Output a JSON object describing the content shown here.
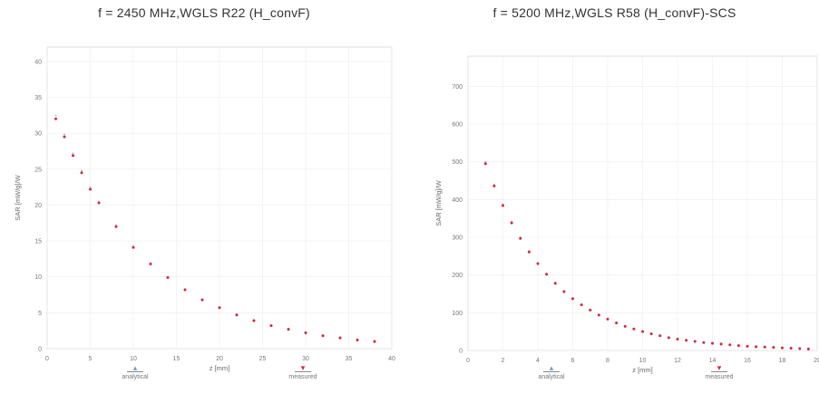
{
  "chart_data": [
    {
      "type": "scatter",
      "title": "f = 2450 MHz,WGLS R22 (H_convF)",
      "xlabel": "z [mm]",
      "ylabel": "SAR [mW/g]/W",
      "xlim": [
        0,
        40
      ],
      "ylim": [
        0,
        42
      ],
      "xticks": [
        "0",
        "5",
        "10",
        "15",
        "20",
        "25",
        "30",
        "35",
        "40"
      ],
      "yticks": [
        "0",
        "5",
        "10",
        "15",
        "20",
        "25",
        "30",
        "35",
        "40"
      ],
      "grid": true,
      "series": [
        {
          "name": "analytical",
          "color": "#7a9fb8",
          "x": [
            1,
            2,
            3,
            4,
            5,
            6,
            8,
            10,
            12,
            14,
            16,
            18,
            20,
            22,
            24,
            26,
            28,
            30,
            32,
            34,
            36,
            38
          ],
          "y": [
            32.5,
            29.8,
            27.2,
            24.8,
            22.5,
            20.5,
            17.2,
            14.3,
            11.9,
            10.0,
            8.3,
            6.9,
            5.8,
            4.8,
            4.0,
            3.3,
            2.8,
            2.3,
            1.9,
            1.6,
            1.3,
            1.1
          ]
        },
        {
          "name": "measured",
          "color": "#cc2a3a",
          "x": [
            1,
            2,
            3,
            4,
            5,
            6,
            8,
            10,
            12,
            14,
            16,
            18,
            20,
            22,
            24,
            26,
            28,
            30,
            32,
            34,
            36,
            38
          ],
          "y": [
            32.0,
            29.5,
            26.9,
            24.5,
            22.2,
            20.3,
            17.0,
            14.1,
            11.8,
            9.9,
            8.2,
            6.8,
            5.7,
            4.7,
            3.9,
            3.2,
            2.7,
            2.2,
            1.8,
            1.5,
            1.2,
            1.0
          ]
        }
      ],
      "legend": [
        "analytical",
        "measured"
      ],
      "legend_position": "bottom"
    },
    {
      "type": "scatter",
      "title": "f = 5200 MHz,WGLS R58 (H_convF)-SCS",
      "xlabel": "z [mm]",
      "ylabel": "SAR [mW/g]/W",
      "xlim": [
        0,
        20
      ],
      "ylim": [
        0,
        780
      ],
      "xticks": [
        "0",
        "2",
        "4",
        "6",
        "8",
        "10",
        "12",
        "14",
        "16",
        "18",
        "20"
      ],
      "yticks": [
        "0",
        "100",
        "200",
        "300",
        "400",
        "500",
        "600",
        "700"
      ],
      "grid": true,
      "series": [
        {
          "name": "analytical",
          "color": "#7a9fb8",
          "x": [
            1.0,
            1.5,
            2.0,
            2.5,
            3.0,
            3.5,
            4.0,
            4.5,
            5.0,
            5.5,
            6.0,
            6.5,
            7.0,
            7.5,
            8.0,
            8.5,
            9.0,
            9.5,
            10.0,
            10.5,
            11.0,
            11.5,
            12.0,
            12.5,
            13.0,
            13.5,
            14.0,
            14.5,
            15.0,
            15.5,
            16.0,
            16.5,
            17.0,
            17.5,
            18.0,
            18.5,
            19.0,
            19.5
          ],
          "y": [
            500,
            440,
            388,
            342,
            300,
            264,
            232,
            204,
            180,
            158,
            139,
            122,
            108,
            95,
            84,
            74,
            65,
            58,
            51,
            45,
            40,
            35,
            31,
            28,
            25,
            22,
            20,
            18,
            16,
            14,
            12,
            11,
            10,
            9,
            8,
            7,
            6,
            5
          ]
        },
        {
          "name": "measured",
          "color": "#cc2a3a",
          "x": [
            1.0,
            1.5,
            2.0,
            2.5,
            3.0,
            3.5,
            4.0,
            4.5,
            5.0,
            5.5,
            6.0,
            6.5,
            7.0,
            7.5,
            8.0,
            8.5,
            9.0,
            9.5,
            10.0,
            10.5,
            11.0,
            11.5,
            12.0,
            12.5,
            13.0,
            13.5,
            14.0,
            14.5,
            15.0,
            15.5,
            16.0,
            16.5,
            17.0,
            17.5,
            18.0,
            18.5,
            19.0,
            19.5
          ],
          "y": [
            495,
            436,
            384,
            338,
            297,
            261,
            230,
            202,
            178,
            156,
            137,
            121,
            107,
            94,
            83,
            73,
            64,
            57,
            50,
            44,
            39,
            34,
            30,
            27,
            24,
            21,
            19,
            17,
            15,
            13,
            11,
            10,
            9,
            8,
            7,
            6,
            5,
            4
          ]
        }
      ],
      "legend": [
        "analytical",
        "measured"
      ],
      "legend_position": "bottom"
    }
  ]
}
